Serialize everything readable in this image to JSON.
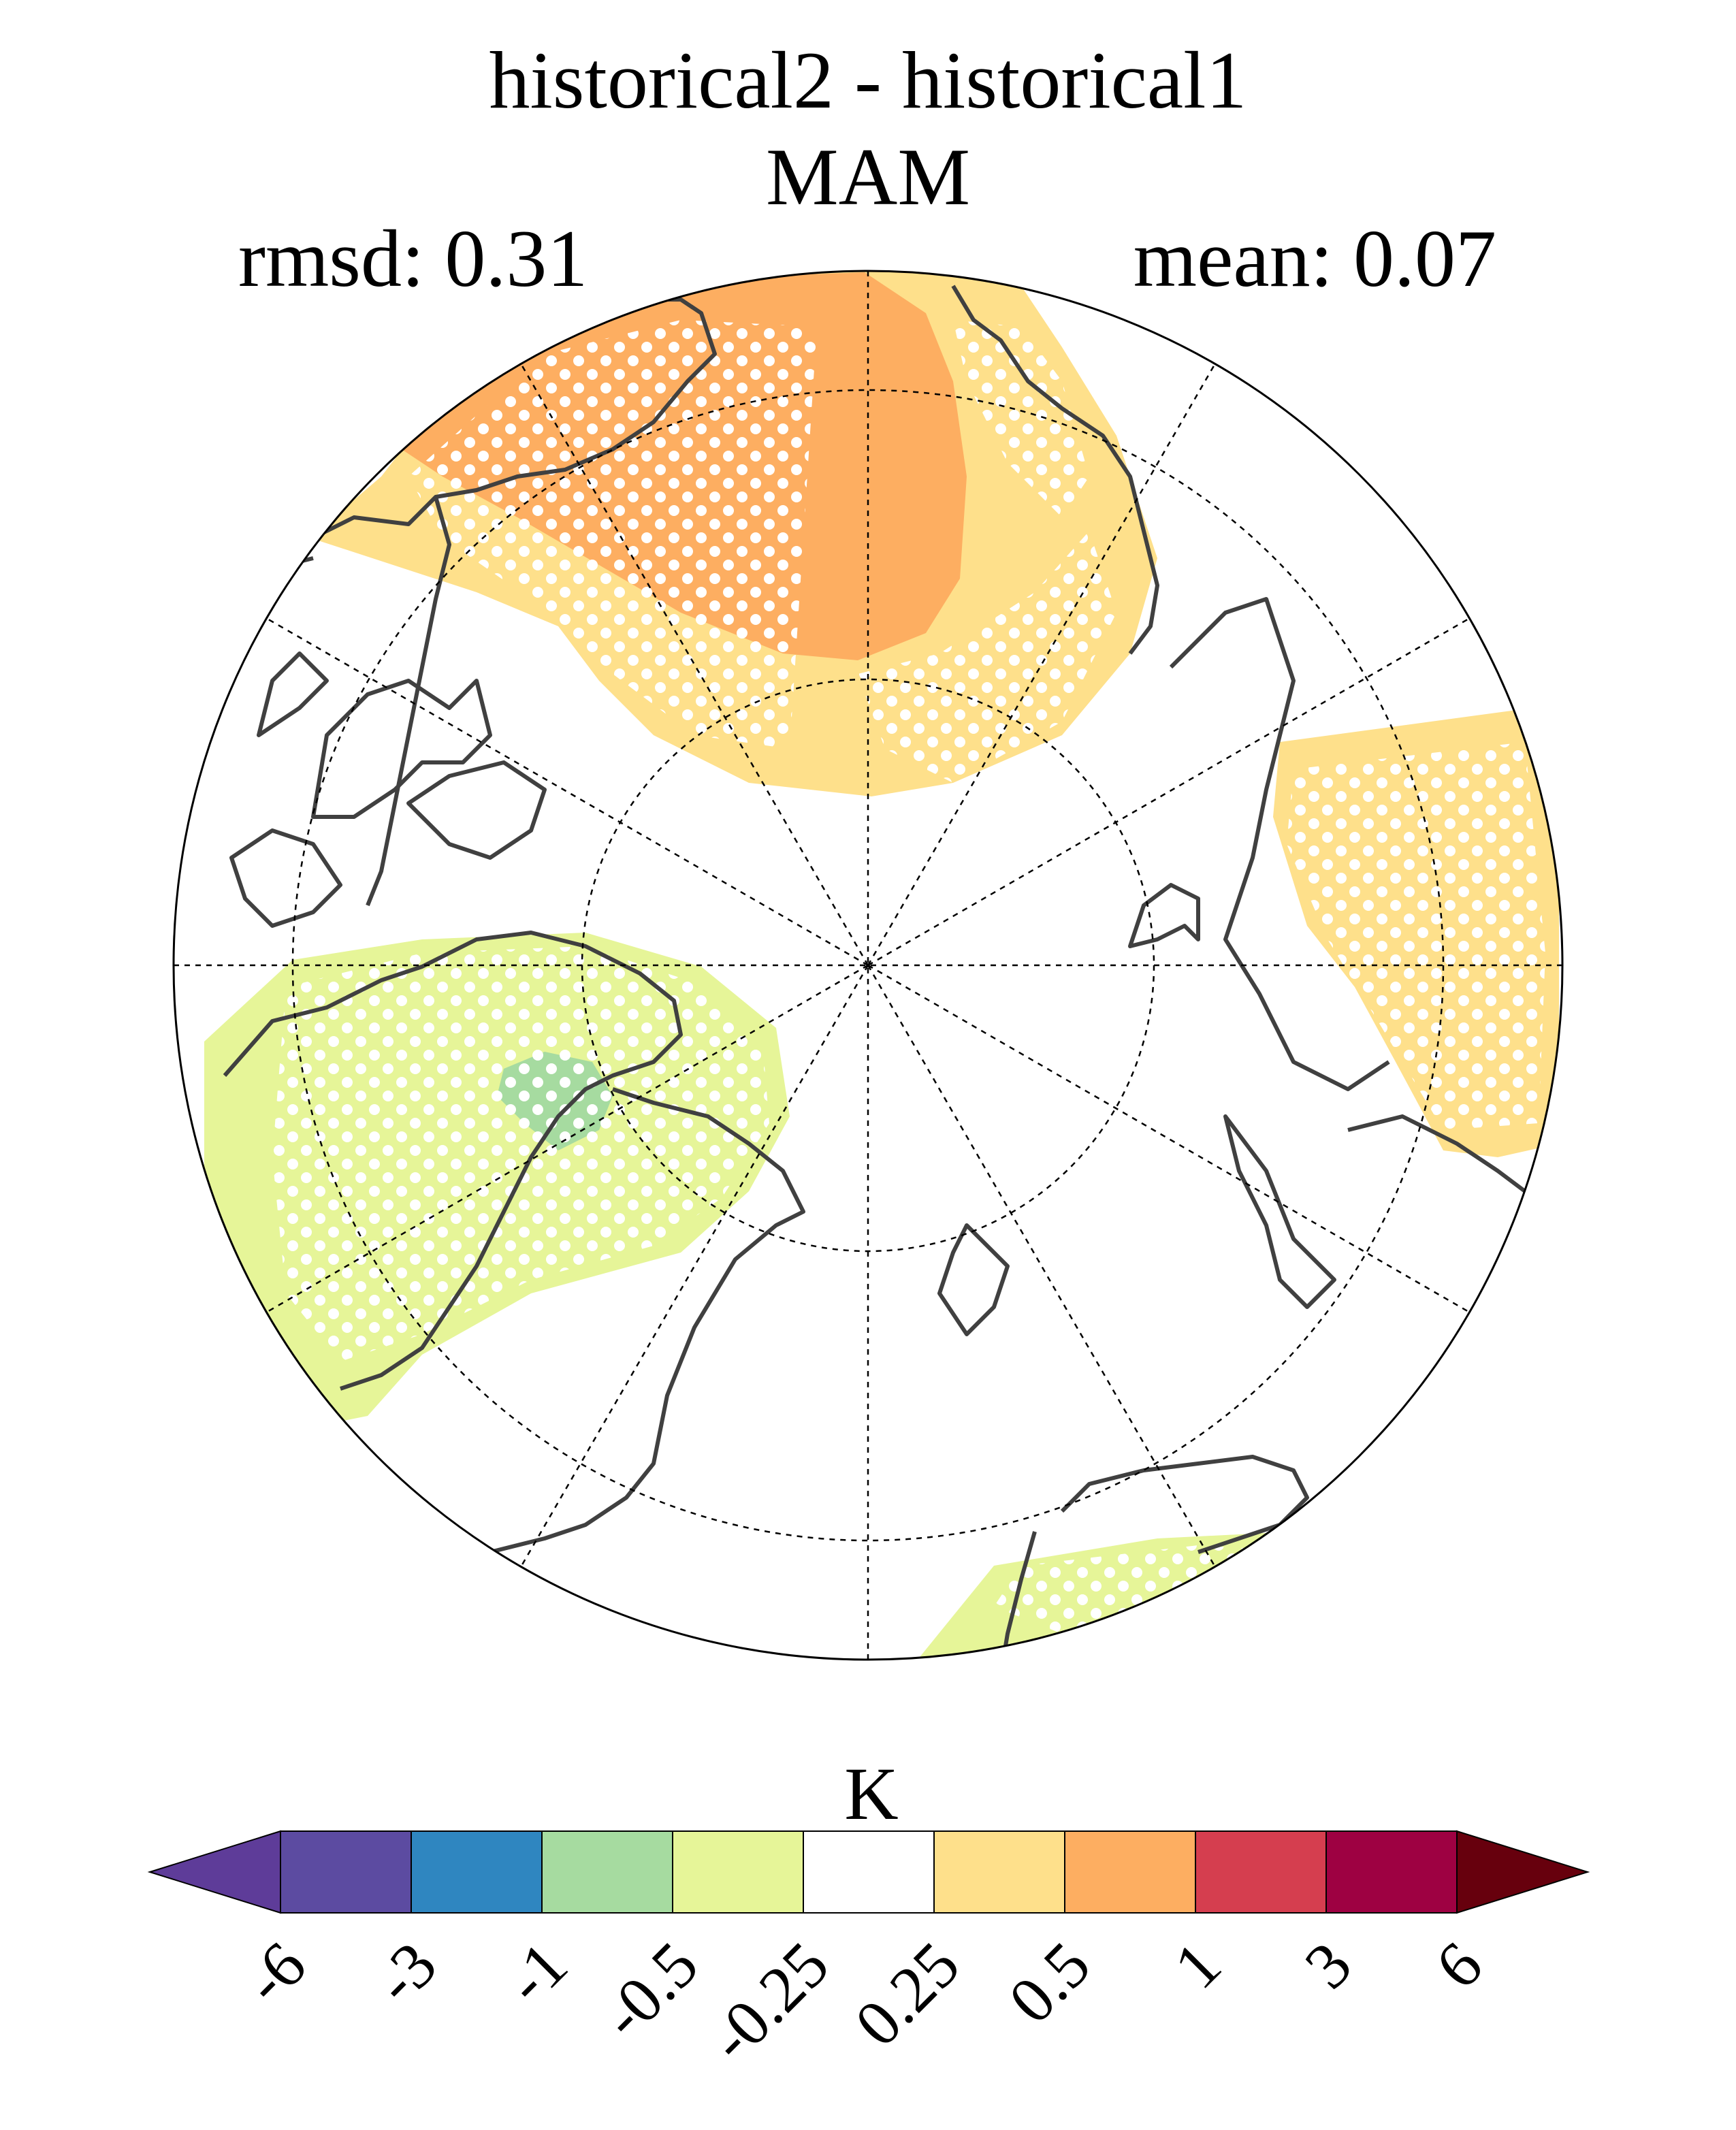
{
  "title": "historical2 - historical1",
  "season": "MAM",
  "stats": {
    "rmsd": "rmsd: 0.31",
    "mean": "mean: 0.07"
  },
  "colorbar": {
    "unit": "K",
    "colors": [
      "#5e3c99",
      "#5c4ba1",
      "#2f86c0",
      "#a6dba0",
      "#e6f598",
      "#ffffff",
      "#fee08b",
      "#fdae61",
      "#d53e4f",
      "#9e0142",
      "#67000d"
    ],
    "tick_labels": [
      "-6",
      "-3",
      "-1",
      "-0.5",
      "-0.25",
      "0.25",
      "0.5",
      "1",
      "3",
      "6"
    ]
  },
  "map": {
    "projection": "north polar stereographic",
    "gridlines": "dashed",
    "stippling": "white dots mark significant areas",
    "ocean_fill": "#ffffff",
    "coastline_color": "#404040"
  }
}
